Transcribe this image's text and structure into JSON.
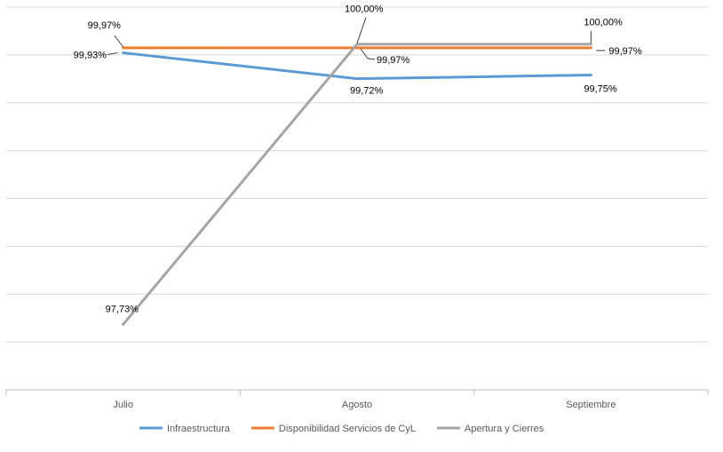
{
  "chart_data": {
    "type": "line",
    "categories": [
      "Julio",
      "Agosto",
      "Septiembre"
    ],
    "series": [
      {
        "name": "Infraestructura",
        "color": "#5B9BD5",
        "values": [
          99.93,
          99.72,
          99.75
        ],
        "labels": [
          "99,93%",
          "99,72%",
          "99,75%"
        ]
      },
      {
        "name": "Disponibilidad Servicios de CyL",
        "color": "#ED7D31",
        "values": [
          99.97,
          99.97,
          99.97
        ],
        "labels": [
          "99,97%",
          "99,97%",
          "99,97%"
        ]
      },
      {
        "name": "Apertura y Cierres",
        "color": "#A5A5A5",
        "values": [
          97.73,
          100.0,
          100.0
        ],
        "labels": [
          "97,73%",
          "100,00%",
          "100,00%"
        ]
      }
    ],
    "ylim": [
      97.2,
      100.3
    ],
    "grid": true,
    "legend_position": "bottom"
  }
}
